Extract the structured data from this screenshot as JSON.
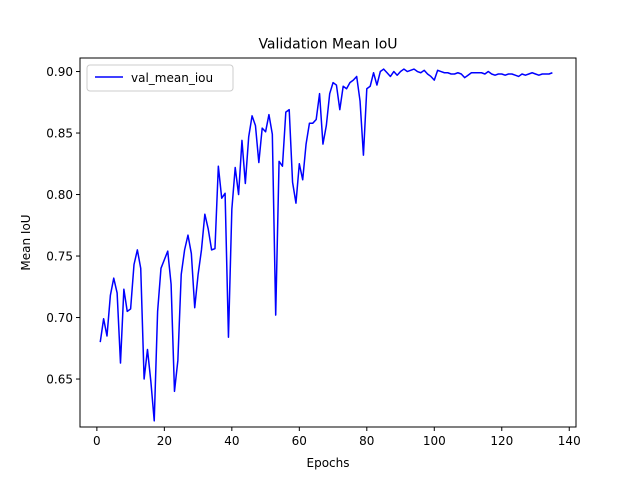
{
  "chart_data": {
    "type": "line",
    "title": "Validation Mean IoU",
    "xlabel": "Epochs",
    "ylabel": "Mean IoU",
    "xlim": [
      -5,
      142
    ],
    "ylim": [
      0.611,
      0.911
    ],
    "xticks": [
      0,
      20,
      40,
      60,
      80,
      100,
      120,
      140
    ],
    "yticks": [
      0.65,
      0.7,
      0.75,
      0.8,
      0.85,
      0.9
    ],
    "ytick_labels": [
      "0.65",
      "0.70",
      "0.75",
      "0.80",
      "0.85",
      "0.90"
    ],
    "grid": false,
    "legend_position": "upper-left",
    "series": [
      {
        "name": "val_mean_iou",
        "color": "#0000ff",
        "x": [
          1,
          2,
          3,
          4,
          5,
          6,
          7,
          8,
          9,
          10,
          11,
          12,
          13,
          14,
          15,
          16,
          17,
          18,
          19,
          20,
          21,
          22,
          23,
          24,
          25,
          26,
          27,
          28,
          29,
          30,
          31,
          32,
          33,
          34,
          35,
          36,
          37,
          38,
          39,
          40,
          41,
          42,
          43,
          44,
          45,
          46,
          47,
          48,
          49,
          50,
          51,
          52,
          53,
          54,
          55,
          56,
          57,
          58,
          59,
          60,
          61,
          62,
          63,
          64,
          65,
          66,
          67,
          68,
          69,
          70,
          71,
          72,
          73,
          74,
          75,
          76,
          77,
          78,
          79,
          80,
          81,
          82,
          83,
          84,
          85,
          86,
          87,
          88,
          89,
          90,
          91,
          92,
          93,
          94,
          95,
          96,
          97,
          98,
          99,
          100,
          101,
          102,
          103,
          104,
          105,
          106,
          107,
          108,
          109,
          110,
          111,
          112,
          113,
          114,
          115,
          116,
          117,
          118,
          119,
          120,
          121,
          122,
          123,
          124,
          125,
          126,
          127,
          128,
          129,
          130,
          131,
          132,
          133,
          134,
          135
        ],
        "y": [
          0.68,
          0.699,
          0.685,
          0.718,
          0.732,
          0.72,
          0.663,
          0.723,
          0.705,
          0.707,
          0.743,
          0.755,
          0.74,
          0.65,
          0.674,
          0.648,
          0.616,
          0.705,
          0.74,
          0.747,
          0.754,
          0.727,
          0.64,
          0.665,
          0.735,
          0.755,
          0.767,
          0.752,
          0.708,
          0.735,
          0.755,
          0.784,
          0.772,
          0.755,
          0.756,
          0.823,
          0.797,
          0.801,
          0.684,
          0.788,
          0.822,
          0.8,
          0.844,
          0.809,
          0.847,
          0.864,
          0.856,
          0.826,
          0.854,
          0.851,
          0.865,
          0.849,
          0.702,
          0.827,
          0.823,
          0.867,
          0.869,
          0.81,
          0.793,
          0.825,
          0.812,
          0.841,
          0.858,
          0.858,
          0.861,
          0.882,
          0.841,
          0.856,
          0.882,
          0.891,
          0.889,
          0.869,
          0.888,
          0.886,
          0.891,
          0.893,
          0.896,
          0.876,
          0.832,
          0.886,
          0.888,
          0.899,
          0.889,
          0.9,
          0.902,
          0.899,
          0.896,
          0.9,
          0.897,
          0.9,
          0.902,
          0.9,
          0.901,
          0.902,
          0.9,
          0.899,
          0.901,
          0.898,
          0.896,
          0.893,
          0.901,
          0.9,
          0.899,
          0.899,
          0.898,
          0.898,
          0.899,
          0.898,
          0.895,
          0.897,
          0.899,
          0.899,
          0.899,
          0.899,
          0.898,
          0.9,
          0.898,
          0.897,
          0.898,
          0.898,
          0.897,
          0.898,
          0.898,
          0.897,
          0.896,
          0.898,
          0.897,
          0.898,
          0.899,
          0.898,
          0.897,
          0.898,
          0.898,
          0.898,
          0.899
        ]
      }
    ]
  }
}
